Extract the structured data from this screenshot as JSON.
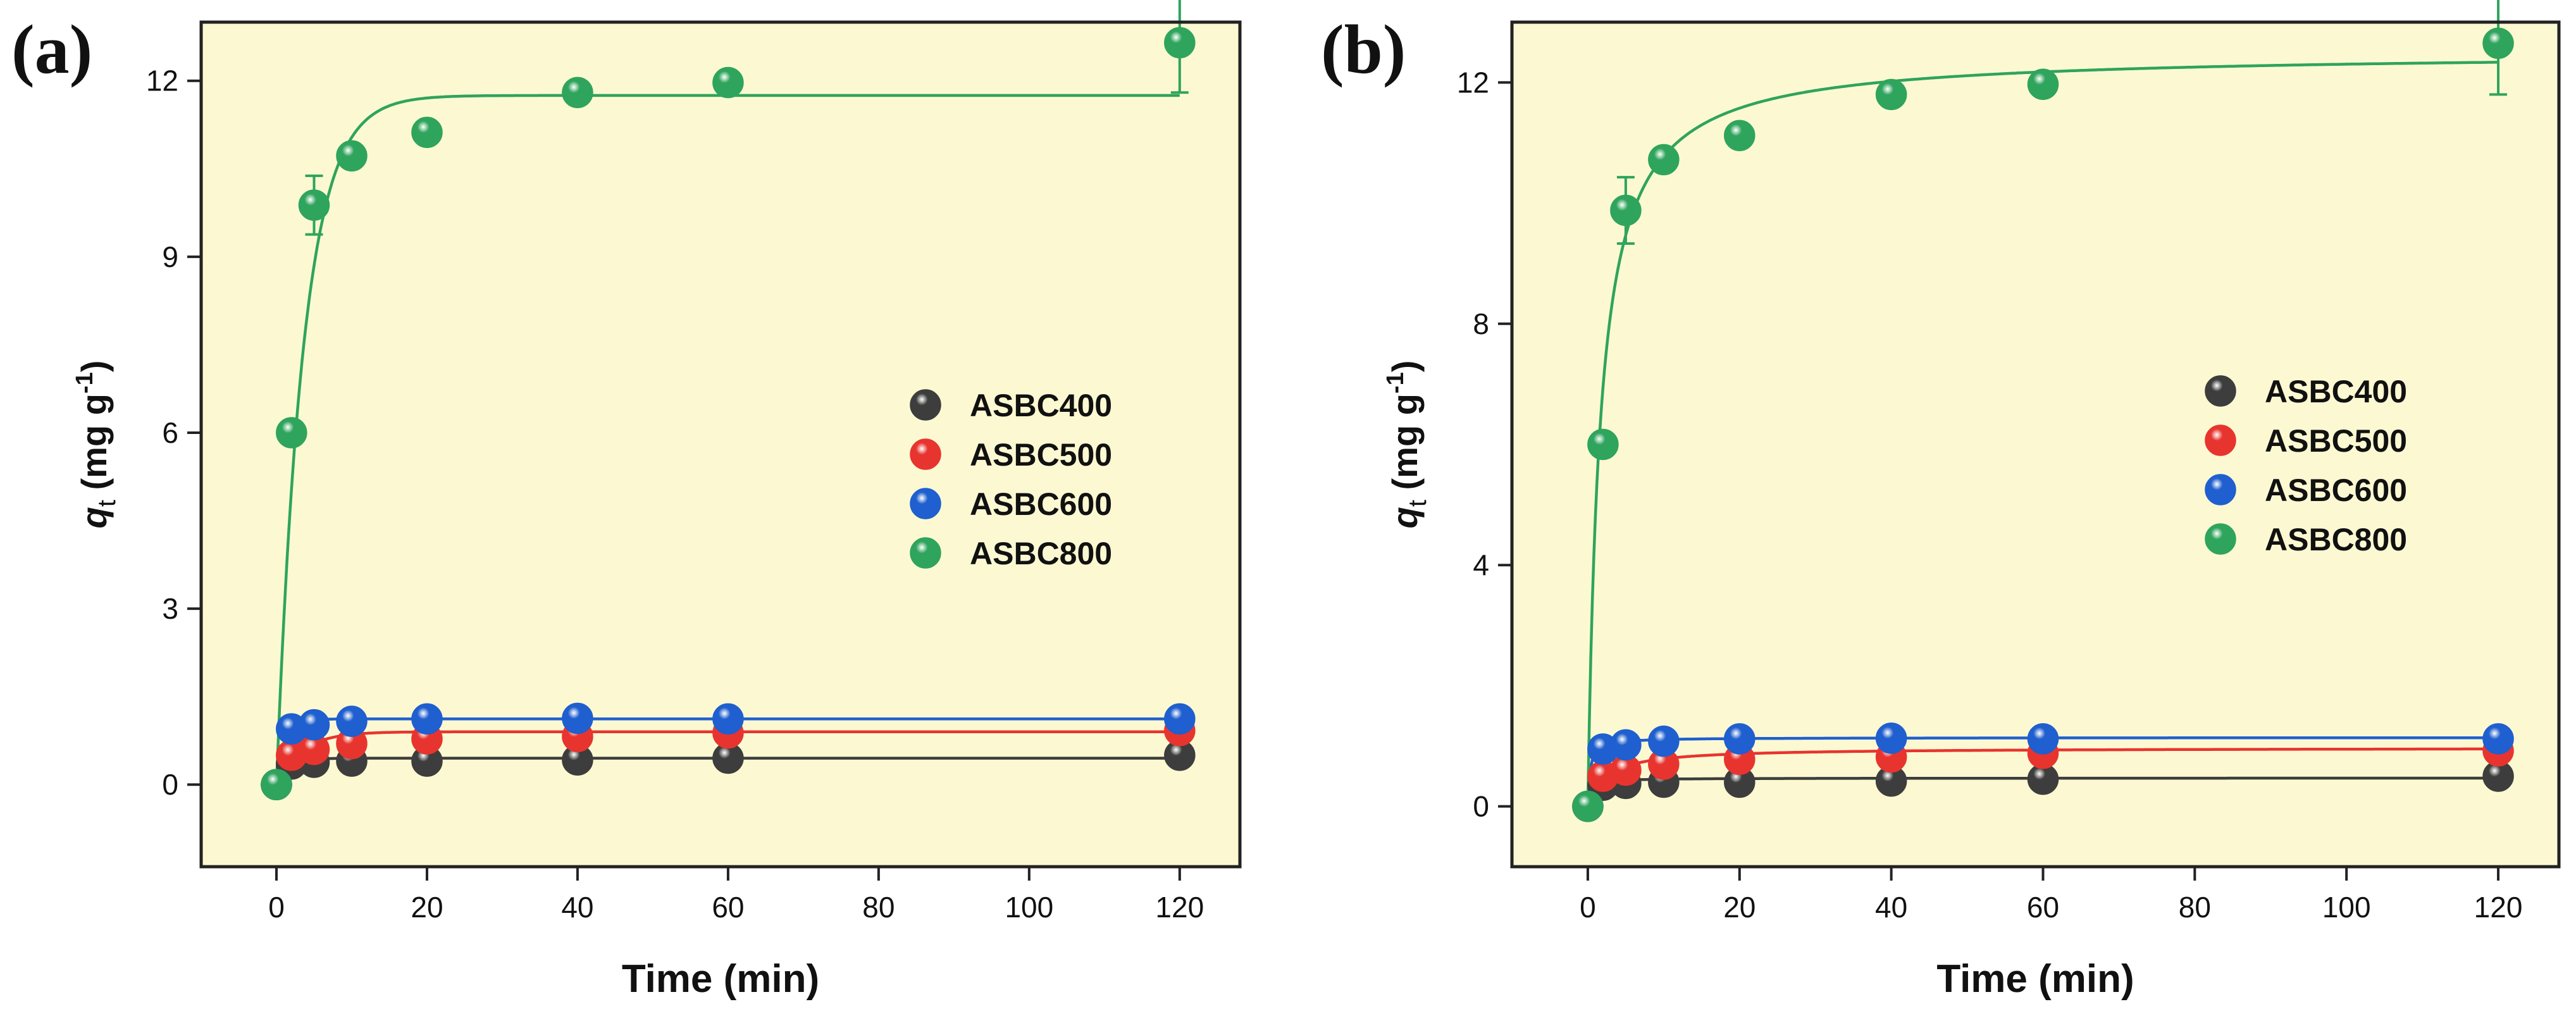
{
  "colors": {
    "plot_bg": "#fcf9d2",
    "axis": "#222222",
    "ASBC400": "#3d3d3d",
    "ASBC500": "#e8342f",
    "ASBC600": "#1f5fcf",
    "ASBC800": "#2fa45c"
  },
  "chart_data": [
    {
      "type": "scatter",
      "panel_label": "(a)",
      "title": "",
      "xlabel": "Time (min)",
      "ylabel_main": "q",
      "ylabel_sub": "t",
      "ylabel_unit_open": " (mg g",
      "ylabel_unit_sup": "-1",
      "ylabel_unit_close": ")",
      "xlim": [
        -10,
        128
      ],
      "ylim": [
        -1.4,
        13.0
      ],
      "xticks": [
        0,
        20,
        40,
        60,
        80,
        100,
        120
      ],
      "yticks": [
        0,
        3,
        6,
        9,
        12
      ],
      "legend_position": "center-right",
      "x": [
        0,
        2,
        5,
        10,
        20,
        40,
        60,
        120
      ],
      "series": [
        {
          "name": "ASBC400",
          "color_key": "ASBC400",
          "values": [
            0,
            0.35,
            0.38,
            0.4,
            0.4,
            0.42,
            0.45,
            0.5
          ],
          "fit": {
            "model": "pfo",
            "qe": 0.45,
            "k": 0.6
          }
        },
        {
          "name": "ASBC500",
          "color_key": "ASBC500",
          "values": [
            0,
            0.5,
            0.6,
            0.7,
            0.78,
            0.82,
            0.88,
            0.92
          ],
          "fit": {
            "model": "pfo",
            "qe": 0.9,
            "k": 0.3
          }
        },
        {
          "name": "ASBC600",
          "color_key": "ASBC600",
          "values": [
            0,
            0.95,
            1.02,
            1.08,
            1.12,
            1.13,
            1.12,
            1.12
          ],
          "fit": {
            "model": "pfo",
            "qe": 1.12,
            "k": 0.8
          }
        },
        {
          "name": "ASBC800",
          "color_key": "ASBC800",
          "values": [
            0,
            6.0,
            9.88,
            10.72,
            11.12,
            11.8,
            11.97,
            12.65
          ],
          "errors": {
            "5": 0.5,
            "120": 0.85
          },
          "fit": {
            "model": "pfo",
            "qe": 11.75,
            "k": 0.28
          }
        }
      ]
    },
    {
      "type": "scatter",
      "panel_label": "(b)",
      "title": "",
      "xlabel": "Time (min)",
      "ylabel_main": "q",
      "ylabel_sub": "t",
      "ylabel_unit_open": " (mg g",
      "ylabel_unit_sup": "-1",
      "ylabel_unit_close": ")",
      "xlim": [
        -10,
        128
      ],
      "ylim": [
        -1.0,
        13.0
      ],
      "xticks": [
        0,
        20,
        40,
        60,
        80,
        100,
        120
      ],
      "yticks": [
        0,
        4,
        8,
        12
      ],
      "legend_position": "center-right",
      "x": [
        0,
        2,
        5,
        10,
        20,
        40,
        60,
        120
      ],
      "series": [
        {
          "name": "ASBC400",
          "color_key": "ASBC400",
          "values": [
            0,
            0.35,
            0.38,
            0.4,
            0.4,
            0.42,
            0.45,
            0.5
          ],
          "fit": {
            "model": "pso",
            "qe": 0.47,
            "k": 5.0
          }
        },
        {
          "name": "ASBC500",
          "color_key": "ASBC500",
          "values": [
            0,
            0.5,
            0.6,
            0.7,
            0.78,
            0.82,
            0.88,
            0.92
          ],
          "fit": {
            "model": "pso",
            "qe": 0.97,
            "k": 0.45
          }
        },
        {
          "name": "ASBC600",
          "color_key": "ASBC600",
          "values": [
            0,
            0.95,
            1.02,
            1.08,
            1.12,
            1.13,
            1.12,
            1.12
          ],
          "fit": {
            "model": "pso",
            "qe": 1.14,
            "k": 3.0
          }
        },
        {
          "name": "ASBC800",
          "color_key": "ASBC800",
          "values": [
            0,
            6.0,
            9.88,
            10.72,
            11.12,
            11.8,
            11.97,
            12.65
          ],
          "errors": {
            "5": 0.55,
            "120": 0.85
          },
          "fit": {
            "model": "pso",
            "qe": 12.5,
            "k": 0.05
          }
        }
      ]
    }
  ]
}
